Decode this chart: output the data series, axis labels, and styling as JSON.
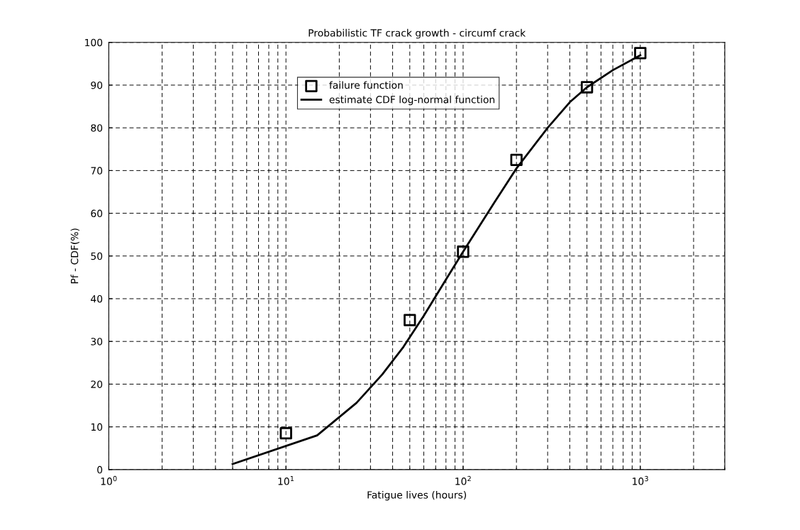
{
  "chart_data": {
    "type": "line",
    "title": "Probabilistic TF crack growth - circumf crack",
    "xlabel": "Fatigue lives (hours)",
    "ylabel": "Pf - CDF(%)",
    "log": "x",
    "xlim": [
      1,
      3000
    ],
    "ylim": [
      0,
      100
    ],
    "xticks": [
      {
        "value": 1,
        "label": "10$^{0}$"
      },
      {
        "value": 10,
        "label": "10$^{1}$"
      },
      {
        "value": 100,
        "label": "10$^{2}$"
      },
      {
        "value": 1000,
        "label": "10$^{3}$"
      }
    ],
    "yticks": [
      0,
      10,
      20,
      30,
      40,
      50,
      60,
      70,
      80,
      90,
      100
    ],
    "grid": true,
    "legend": "top",
    "series": [
      {
        "name": "failure function",
        "type": "scatter",
        "marker": "square",
        "color": "#000000",
        "x": [
          10,
          50,
          100,
          200,
          500,
          1000
        ],
        "values": [
          8.5,
          35,
          51,
          72.5,
          89.5,
          97.5
        ]
      },
      {
        "name": "estimate CDF log-normal function",
        "marker": "none",
        "line_style": "solid",
        "color": "#000000",
        "x": [
          5,
          15,
          25,
          35,
          46,
          60,
          80,
          100,
          150,
          200,
          300,
          400,
          500,
          700,
          1000
        ],
        "values": [
          1.3,
          8,
          15.6,
          22.3,
          28.7,
          36,
          44.5,
          51,
          62.5,
          70.5,
          80,
          86,
          89.5,
          93.5,
          97
        ]
      }
    ]
  }
}
